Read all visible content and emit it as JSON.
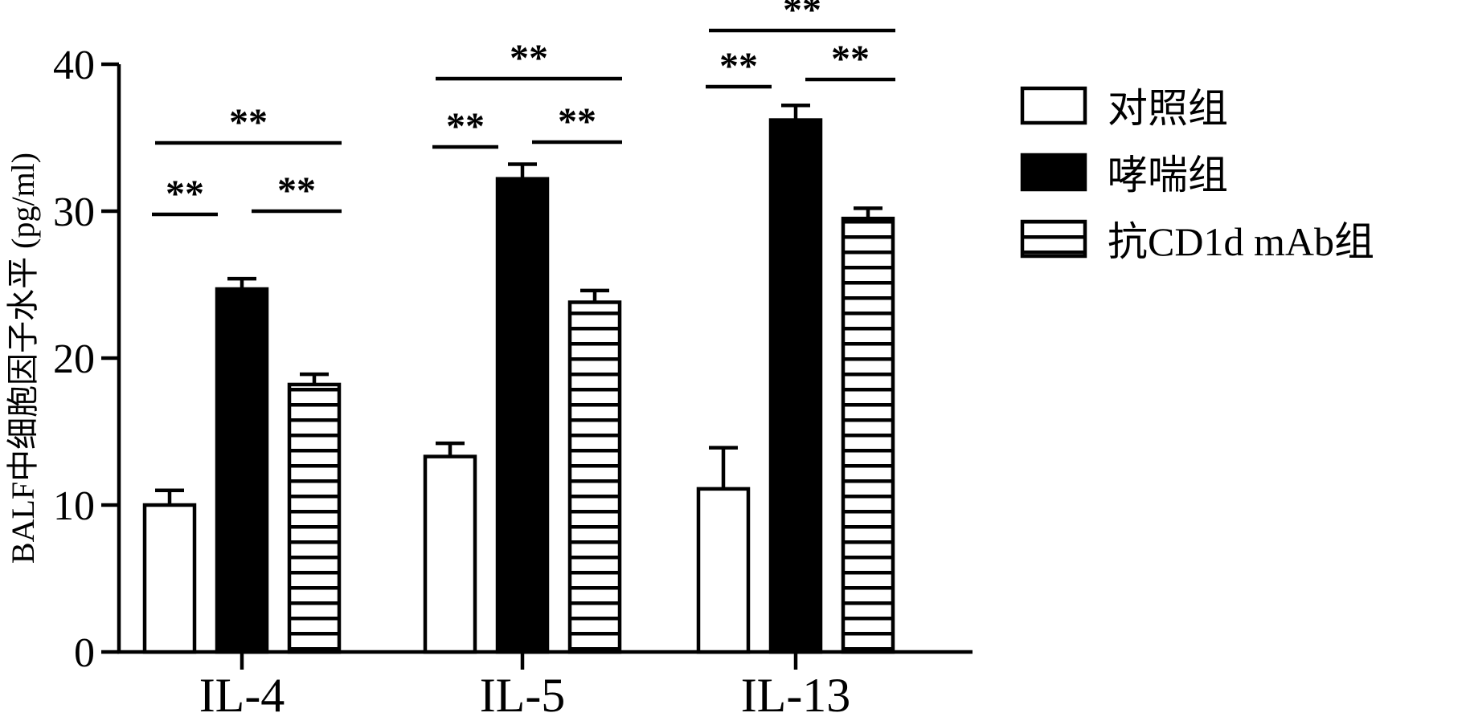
{
  "chart_data": {
    "type": "bar",
    "ylabel": "BALF中细胞因子水平 (pg/ml)",
    "ylim": [
      0,
      40
    ],
    "yticks": [
      0,
      10,
      20,
      30,
      40
    ],
    "categories": [
      "IL-4",
      "IL-5",
      "IL-13"
    ],
    "series": [
      {
        "name": "对照组",
        "fill": "white",
        "values": [
          10.0,
          13.3,
          11.1
        ],
        "errors": [
          1.0,
          0.9,
          2.8
        ]
      },
      {
        "name": "哮喘组",
        "fill": "black",
        "values": [
          24.7,
          32.2,
          36.2
        ],
        "errors": [
          0.7,
          1.0,
          1.0
        ]
      },
      {
        "name": "抗CD1d mAb组",
        "fill": "hatch",
        "values": [
          18.2,
          23.8,
          29.5
        ],
        "errors": [
          0.7,
          0.8,
          0.7
        ]
      }
    ],
    "significance": [
      {
        "category": "IL-4",
        "pair": [
          "对照组",
          "哮喘组"
        ],
        "label": "**"
      },
      {
        "category": "IL-4",
        "pair": [
          "哮喘组",
          "抗CD1d mAb组"
        ],
        "label": "**"
      },
      {
        "category": "IL-4",
        "pair": [
          "对照组",
          "抗CD1d mAb组"
        ],
        "label": "**"
      },
      {
        "category": "IL-5",
        "pair": [
          "对照组",
          "哮喘组"
        ],
        "label": "**"
      },
      {
        "category": "IL-5",
        "pair": [
          "哮喘组",
          "抗CD1d mAb组"
        ],
        "label": "**"
      },
      {
        "category": "IL-5",
        "pair": [
          "对照组",
          "抗CD1d mAb组"
        ],
        "label": "**"
      },
      {
        "category": "IL-13",
        "pair": [
          "对照组",
          "哮喘组"
        ],
        "label": "**"
      },
      {
        "category": "IL-13",
        "pair": [
          "哮喘组",
          "抗CD1d mAb组"
        ],
        "label": "**"
      },
      {
        "category": "IL-13",
        "pair": [
          "对照组",
          "抗CD1d mAb组"
        ],
        "label": "**"
      }
    ],
    "legend_position": "right"
  }
}
